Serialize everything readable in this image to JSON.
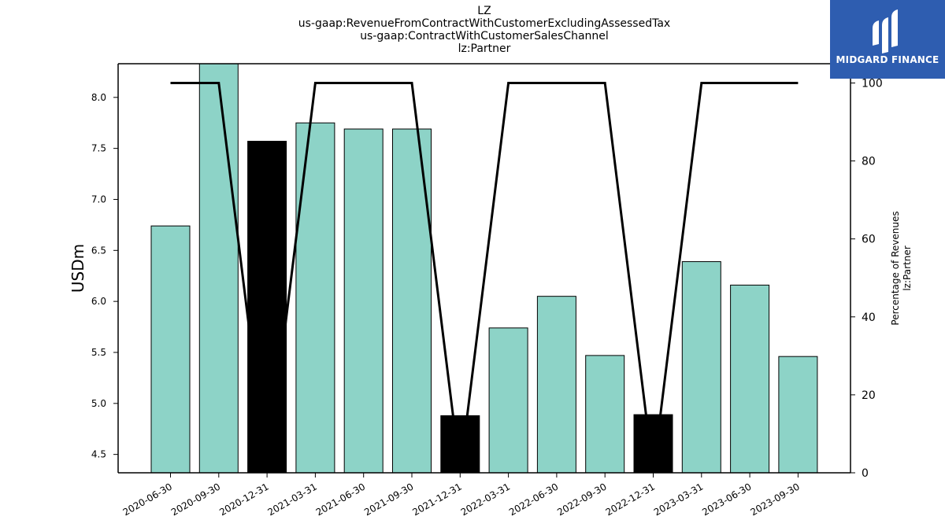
{
  "header": {
    "title_lines": [
      "LZ",
      "us-gaap:RevenueFromContractWithCustomerExcludingAssessedTax",
      "us-gaap:ContractWithCustomerSalesChannel",
      "lz:Partner"
    ]
  },
  "logo": {
    "text": "MIDGARD FINANCE",
    "background": "#2e5db0"
  },
  "colors": {
    "bar_default": "#8dd3c7",
    "bar_highlight": "#000000",
    "line": "#000000"
  },
  "chart_data": {
    "type": "bar",
    "title": "LZ us-gaap:RevenueFromContractWithCustomerExcludingAssessedTax us-gaap:ContractWithCustomerSalesChannel lz:Partner",
    "categories": [
      "2020-06-30",
      "2020-09-30",
      "2020-12-31",
      "2021-03-31",
      "2021-06-30",
      "2021-09-30",
      "2021-12-31",
      "2022-03-31",
      "2022-06-30",
      "2022-09-30",
      "2022-12-31",
      "2023-03-31",
      "2023-06-30",
      "2023-09-30"
    ],
    "series": [
      {
        "values": [
          6.74,
          8.33,
          7.57,
          7.75,
          7.69,
          7.69,
          4.88,
          5.74,
          6.05,
          5.47,
          4.89,
          6.39,
          6.16,
          5.46
        ]
      },
      {
        "values": [
          100,
          100,
          0,
          100,
          100,
          100,
          0,
          100,
          100,
          100,
          0,
          100,
          100,
          100
        ]
      }
    ],
    "highlighted": [
      false,
      false,
      true,
      false,
      false,
      false,
      true,
      false,
      false,
      false,
      true,
      false,
      false,
      false
    ],
    "ylabel": "USDm",
    "ylim": [
      4.32,
      8.33
    ],
    "yticks": [
      "4.5",
      "5.0",
      "5.5",
      "6.0",
      "6.5",
      "7.0",
      "7.5",
      "8.0"
    ],
    "y2label_lines": [
      "Percentage of Revenues",
      "lz:Partner"
    ],
    "y2lim": [
      0,
      100
    ],
    "y2ticks": [
      "0",
      "20",
      "40",
      "60",
      "80",
      "100"
    ],
    "grid": false,
    "legend": "none"
  }
}
